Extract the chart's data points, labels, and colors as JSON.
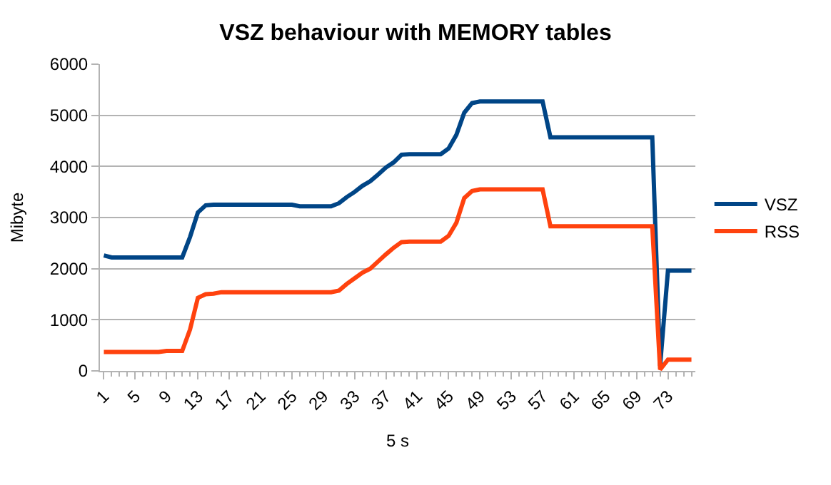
{
  "chart_data": {
    "type": "line",
    "title": "VSZ behaviour with MEMORY tables",
    "xlabel": "5 s",
    "ylabel": "Mibyte",
    "categories": [
      "1",
      null,
      null,
      null,
      "5",
      null,
      null,
      null,
      "9",
      null,
      null,
      null,
      "13",
      null,
      null,
      null,
      "17",
      null,
      null,
      null,
      "21",
      null,
      null,
      null,
      "25",
      null,
      null,
      null,
      "29",
      null,
      null,
      null,
      "33",
      null,
      null,
      null,
      "37",
      null,
      null,
      null,
      "41",
      null,
      null,
      null,
      "45",
      null,
      null,
      null,
      "49",
      null,
      null,
      null,
      "53",
      null,
      null,
      null,
      "57",
      null,
      null,
      null,
      "61",
      null,
      null,
      null,
      "65",
      null,
      null,
      null,
      "69",
      null,
      null,
      null,
      "73",
      null,
      null,
      null
    ],
    "ylim": [
      0,
      6000
    ],
    "yticks": [
      0,
      1000,
      2000,
      3000,
      4000,
      5000,
      6000
    ],
    "grid": "y",
    "legend": "right",
    "marker": "none",
    "line_style": "solid",
    "series": [
      {
        "name": "VSZ",
        "color": "#004586",
        "values": [
          2260,
          2220,
          2220,
          2220,
          2220,
          2220,
          2220,
          2220,
          2220,
          2220,
          2220,
          2620,
          3100,
          3240,
          3250,
          3250,
          3250,
          3250,
          3250,
          3250,
          3250,
          3250,
          3250,
          3250,
          3250,
          3220,
          3220,
          3220,
          3220,
          3220,
          3280,
          3400,
          3500,
          3620,
          3710,
          3840,
          3980,
          4080,
          4230,
          4240,
          4240,
          4240,
          4240,
          4240,
          4350,
          4620,
          5050,
          5240,
          5270,
          5270,
          5270,
          5270,
          5270,
          5270,
          5270,
          5270,
          5270,
          4570,
          4570,
          4570,
          4570,
          4570,
          4570,
          4570,
          4570,
          4570,
          4570,
          4570,
          4570,
          4570,
          4570,
          100,
          1960,
          1960,
          1960,
          1960
        ]
      },
      {
        "name": "RSS",
        "color": "#ff420e",
        "values": [
          370,
          370,
          370,
          370,
          370,
          370,
          370,
          370,
          390,
          390,
          390,
          810,
          1430,
          1500,
          1510,
          1540,
          1540,
          1540,
          1540,
          1540,
          1540,
          1540,
          1540,
          1540,
          1540,
          1540,
          1540,
          1540,
          1540,
          1540,
          1570,
          1700,
          1810,
          1920,
          2000,
          2140,
          2280,
          2410,
          2520,
          2530,
          2530,
          2530,
          2530,
          2530,
          2640,
          2900,
          3380,
          3520,
          3550,
          3550,
          3550,
          3550,
          3550,
          3550,
          3550,
          3550,
          3550,
          2830,
          2830,
          2830,
          2830,
          2830,
          2830,
          2830,
          2830,
          2830,
          2830,
          2830,
          2830,
          2830,
          2830,
          25,
          220,
          220,
          220,
          220
        ]
      }
    ]
  }
}
